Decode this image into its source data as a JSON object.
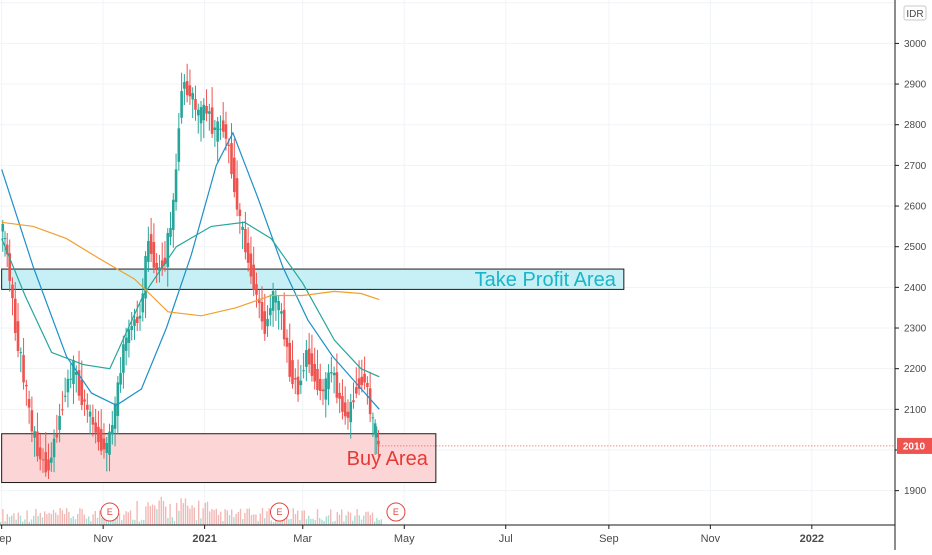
{
  "chart_data": {
    "type": "candlestick",
    "currency": "IDR",
    "ylim": [
      1840,
      3100
    ],
    "y_ticks": [
      1900,
      2000,
      2100,
      2200,
      2300,
      2400,
      2500,
      2600,
      2700,
      2800,
      2900,
      3000,
      3100
    ],
    "x_ticks": [
      {
        "label": "Sep",
        "date": "2020-09-01"
      },
      {
        "label": "Nov",
        "date": "2020-11-01"
      },
      {
        "label": "2021",
        "date": "2021-01-01"
      },
      {
        "label": "Mar",
        "date": "2021-03-01"
      },
      {
        "label": "May",
        "date": "2021-05-01"
      },
      {
        "label": "Jul",
        "date": "2021-07-01"
      },
      {
        "label": "Sep",
        "date": "2021-09-01"
      },
      {
        "label": "Nov",
        "date": "2021-11-01"
      },
      {
        "label": "2022",
        "date": "2022-01-01"
      }
    ],
    "last_price": "2010",
    "zones": [
      {
        "name": "take-profit",
        "label": "Take Profit Area",
        "low": 2395,
        "high": 2445,
        "start": "2020-09-01",
        "end": "2021-09-10",
        "fill": "#c6f0f5",
        "color": "#1ab5c9"
      },
      {
        "name": "buy",
        "label": "Buy Area",
        "low": 1920,
        "high": 2040,
        "start": "2020-09-01",
        "end": "2021-05-20",
        "fill": "#fcd6d6",
        "color": "#e53935"
      }
    ],
    "earnings_events": [
      {
        "label": "E",
        "date": "2020-11-05"
      },
      {
        "label": "E",
        "date": "2021-02-15"
      },
      {
        "label": "E",
        "date": "2021-04-26"
      }
    ],
    "price_series": [
      {
        "date": "2020-09-01",
        "close": 2560
      },
      {
        "date": "2020-09-05",
        "close": 2480
      },
      {
        "date": "2020-09-10",
        "close": 2300
      },
      {
        "date": "2020-09-15",
        "close": 2180
      },
      {
        "date": "2020-09-20",
        "close": 2050
      },
      {
        "date": "2020-09-25",
        "close": 1980
      },
      {
        "date": "2020-09-30",
        "close": 1960
      },
      {
        "date": "2020-10-05",
        "close": 2050
      },
      {
        "date": "2020-10-10",
        "close": 2150
      },
      {
        "date": "2020-10-15",
        "close": 2200
      },
      {
        "date": "2020-10-20",
        "close": 2130
      },
      {
        "date": "2020-10-25",
        "close": 2080
      },
      {
        "date": "2020-10-30",
        "close": 2030
      },
      {
        "date": "2020-11-04",
        "close": 2000
      },
      {
        "date": "2020-11-09",
        "close": 2100
      },
      {
        "date": "2020-11-14",
        "close": 2250
      },
      {
        "date": "2020-11-19",
        "close": 2310
      },
      {
        "date": "2020-11-24",
        "close": 2330
      },
      {
        "date": "2020-11-29",
        "close": 2520
      },
      {
        "date": "2020-12-04",
        "close": 2440
      },
      {
        "date": "2020-12-09",
        "close": 2470
      },
      {
        "date": "2020-12-14",
        "close": 2600
      },
      {
        "date": "2020-12-19",
        "close": 2900
      },
      {
        "date": "2020-12-24",
        "close": 2880
      },
      {
        "date": "2020-12-29",
        "close": 2820
      },
      {
        "date": "2021-01-03",
        "close": 2840
      },
      {
        "date": "2021-01-08",
        "close": 2780
      },
      {
        "date": "2021-01-13",
        "close": 2800
      },
      {
        "date": "2021-01-18",
        "close": 2700
      },
      {
        "date": "2021-01-23",
        "close": 2560
      },
      {
        "date": "2021-01-28",
        "close": 2470
      },
      {
        "date": "2021-02-02",
        "close": 2380
      },
      {
        "date": "2021-02-07",
        "close": 2300
      },
      {
        "date": "2021-02-12",
        "close": 2380
      },
      {
        "date": "2021-02-17",
        "close": 2330
      },
      {
        "date": "2021-02-22",
        "close": 2200
      },
      {
        "date": "2021-02-27",
        "close": 2150
      },
      {
        "date": "2021-03-04",
        "close": 2240
      },
      {
        "date": "2021-03-09",
        "close": 2180
      },
      {
        "date": "2021-03-14",
        "close": 2140
      },
      {
        "date": "2021-03-19",
        "close": 2200
      },
      {
        "date": "2021-03-24",
        "close": 2120
      },
      {
        "date": "2021-03-29",
        "close": 2080
      },
      {
        "date": "2021-04-03",
        "close": 2160
      },
      {
        "date": "2021-04-08",
        "close": 2180
      },
      {
        "date": "2021-04-13",
        "close": 2060
      },
      {
        "date": "2021-04-16",
        "close": 2010
      }
    ],
    "moving_averages": [
      {
        "color": "#1e90c8",
        "points": [
          [
            "2020-09-01",
            2690
          ],
          [
            "2020-09-20",
            2450
          ],
          [
            "2020-10-10",
            2230
          ],
          [
            "2020-10-25",
            2140
          ],
          [
            "2020-11-09",
            2110
          ],
          [
            "2020-11-24",
            2150
          ],
          [
            "2020-12-09",
            2300
          ],
          [
            "2020-12-24",
            2480
          ],
          [
            "2021-01-08",
            2700
          ],
          [
            "2021-01-18",
            2780
          ],
          [
            "2021-02-02",
            2620
          ],
          [
            "2021-02-17",
            2450
          ],
          [
            "2021-03-04",
            2320
          ],
          [
            "2021-03-19",
            2230
          ],
          [
            "2021-04-03",
            2160
          ],
          [
            "2021-04-16",
            2100
          ]
        ]
      },
      {
        "color": "#26a69a",
        "points": [
          [
            "2020-09-01",
            2520
          ],
          [
            "2020-09-15",
            2380
          ],
          [
            "2020-10-01",
            2240
          ],
          [
            "2020-10-20",
            2210
          ],
          [
            "2020-11-05",
            2200
          ],
          [
            "2020-11-25",
            2380
          ],
          [
            "2020-12-15",
            2500
          ],
          [
            "2021-01-05",
            2550
          ],
          [
            "2021-01-25",
            2560
          ],
          [
            "2021-02-10",
            2520
          ],
          [
            "2021-03-01",
            2410
          ],
          [
            "2021-03-20",
            2270
          ],
          [
            "2021-04-05",
            2200
          ],
          [
            "2021-04-16",
            2180
          ]
        ]
      },
      {
        "color": "#f0a030",
        "points": [
          [
            "2020-09-01",
            2560
          ],
          [
            "2020-09-20",
            2550
          ],
          [
            "2020-10-10",
            2520
          ],
          [
            "2020-10-30",
            2470
          ],
          [
            "2020-11-20",
            2420
          ],
          [
            "2020-12-10",
            2340
          ],
          [
            "2020-12-30",
            2330
          ],
          [
            "2021-01-20",
            2350
          ],
          [
            "2021-02-10",
            2380
          ],
          [
            "2021-03-01",
            2380
          ],
          [
            "2021-03-20",
            2390
          ],
          [
            "2021-04-05",
            2385
          ],
          [
            "2021-04-16",
            2370
          ]
        ]
      }
    ],
    "volume_baseline_label": ""
  }
}
